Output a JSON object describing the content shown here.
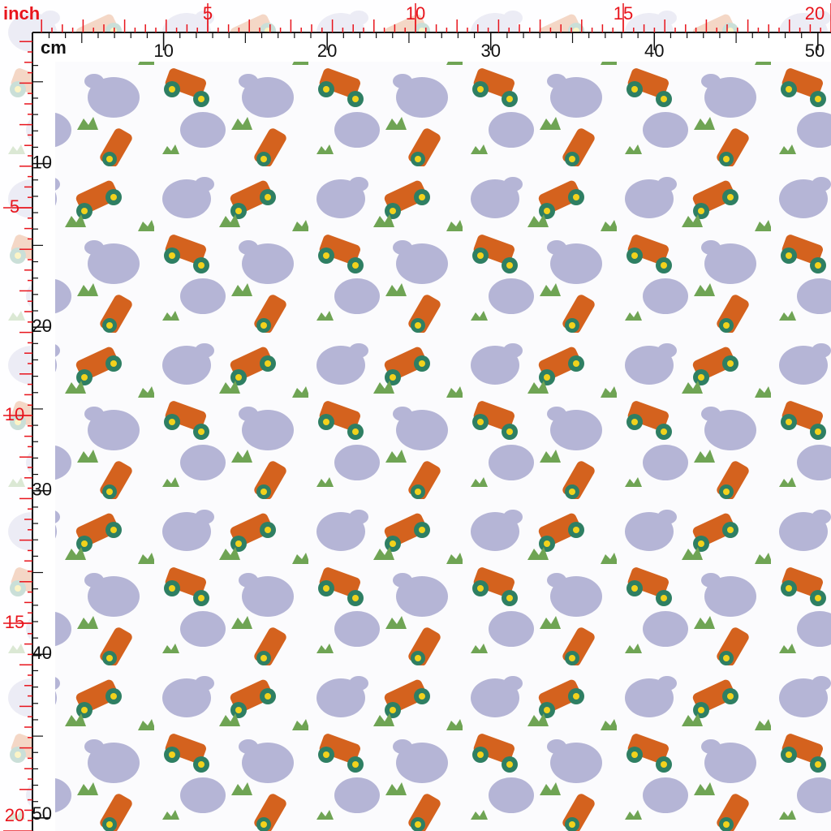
{
  "top_inch_ruler": {
    "unit": "inch",
    "labels": [
      5,
      10,
      15,
      20
    ]
  },
  "top_cm_ruler": {
    "unit": "cm",
    "labels": [
      10,
      20,
      30,
      40,
      50
    ]
  },
  "left_cm_ruler": {
    "labels": [
      10,
      20,
      30,
      40,
      50
    ]
  },
  "left_inch_ruler": {
    "labels": [
      5,
      10,
      15,
      20
    ]
  }
}
